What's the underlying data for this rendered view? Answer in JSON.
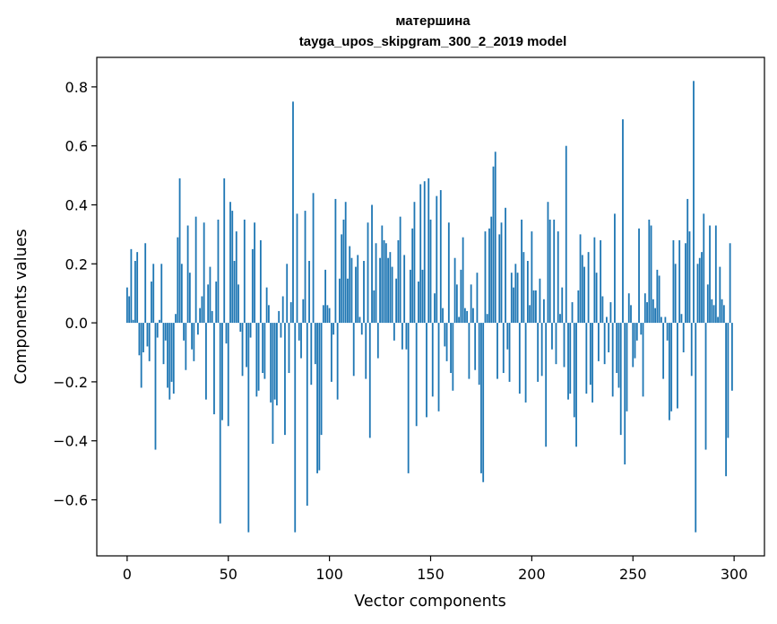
{
  "chart_data": {
    "type": "bar",
    "title": "матершина",
    "subtitle": "tayga_upos_skipgram_300_2_2019 model",
    "xlabel": "Vector components",
    "ylabel": "Components values",
    "xlim": [
      -15,
      315
    ],
    "ylim": [
      -0.79,
      0.9
    ],
    "xticks": [
      0,
      50,
      100,
      150,
      200,
      250,
      300
    ],
    "xtick_labels": [
      "0",
      "50",
      "100",
      "150",
      "200",
      "250",
      "300"
    ],
    "yticks": [
      -0.6,
      -0.4,
      -0.2,
      0.0,
      0.2,
      0.4,
      0.6,
      0.8
    ],
    "ytick_labels": [
      "−0.6",
      "−0.4",
      "−0.2",
      "0.0",
      "0.2",
      "0.4",
      "0.6",
      "0.8"
    ],
    "grid": false,
    "bar_color": "#1f77b4",
    "series": [
      {
        "name": "матершина",
        "values": [
          0.12,
          0.09,
          0.25,
          0.01,
          0.21,
          0.24,
          -0.11,
          -0.22,
          -0.1,
          0.27,
          -0.08,
          -0.13,
          0.14,
          0.2,
          -0.43,
          -0.05,
          0.01,
          0.2,
          -0.14,
          -0.06,
          -0.22,
          -0.26,
          -0.2,
          -0.24,
          0.03,
          0.29,
          0.49,
          0.2,
          -0.06,
          -0.16,
          0.33,
          0.17,
          -0.09,
          -0.13,
          0.36,
          -0.04,
          0.05,
          0.09,
          0.34,
          -0.26,
          0.13,
          0.19,
          0.04,
          -0.31,
          0.14,
          0.35,
          -0.68,
          -0.33,
          0.49,
          -0.07,
          -0.35,
          0.41,
          0.38,
          0.21,
          0.31,
          0.13,
          -0.03,
          -0.18,
          0.35,
          -0.15,
          -0.71,
          -0.05,
          0.25,
          0.34,
          -0.25,
          -0.23,
          0.28,
          -0.17,
          -0.19,
          0.12,
          0.06,
          -0.27,
          -0.41,
          -0.26,
          -0.28,
          0.04,
          -0.05,
          0.09,
          -0.38,
          0.2,
          -0.17,
          0.07,
          0.75,
          -0.71,
          0.37,
          -0.06,
          -0.12,
          0.08,
          0.38,
          -0.62,
          0.21,
          -0.21,
          0.44,
          -0.14,
          -0.51,
          -0.5,
          -0.38,
          0.06,
          0.18,
          0.06,
          0.05,
          -0.2,
          -0.04,
          0.42,
          -0.26,
          0.15,
          0.3,
          0.35,
          0.41,
          0.15,
          0.26,
          0.22,
          -0.18,
          0.19,
          0.23,
          0.02,
          -0.04,
          0.21,
          -0.19,
          0.34,
          -0.39,
          0.4,
          0.11,
          0.27,
          -0.12,
          0.22,
          0.33,
          0.28,
          0.27,
          0.22,
          0.24,
          0.19,
          -0.06,
          0.15,
          0.28,
          0.36,
          -0.09,
          0.23,
          -0.09,
          -0.51,
          0.18,
          0.32,
          0.41,
          -0.35,
          0.14,
          0.47,
          0.18,
          0.48,
          -0.32,
          0.49,
          0.35,
          -0.25,
          0.1,
          0.43,
          -0.3,
          0.45,
          0.05,
          -0.08,
          -0.13,
          0.34,
          -0.17,
          -0.23,
          0.22,
          0.13,
          0.02,
          0.18,
          0.29,
          0.05,
          0.04,
          -0.19,
          0.13,
          0.05,
          -0.16,
          0.17,
          -0.21,
          -0.51,
          -0.54,
          0.31,
          0.03,
          0.32,
          0.36,
          0.53,
          0.58,
          -0.19,
          0.3,
          0.34,
          -0.17,
          0.39,
          -0.09,
          -0.2,
          0.17,
          0.12,
          0.2,
          0.17,
          -0.24,
          0.35,
          0.24,
          -0.27,
          0.21,
          0.06,
          0.31,
          0.11,
          0.11,
          -0.2,
          0.15,
          -0.18,
          0.08,
          -0.42,
          0.41,
          0.35,
          -0.09,
          0.35,
          -0.14,
          0.31,
          0.03,
          0.12,
          -0.15,
          0.6,
          -0.26,
          -0.24,
          0.07,
          -0.32,
          -0.42,
          0.11,
          0.3,
          0.23,
          0.19,
          -0.24,
          0.24,
          -0.21,
          -0.27,
          0.29,
          0.17,
          -0.13,
          0.28,
          0.09,
          -0.14,
          0.02,
          -0.1,
          0.07,
          -0.25,
          0.37,
          -0.17,
          -0.22,
          -0.38,
          0.69,
          -0.48,
          -0.3,
          0.1,
          0.06,
          -0.15,
          -0.12,
          -0.06,
          0.32,
          -0.04,
          -0.25,
          0.1,
          0.07,
          0.35,
          0.33,
          0.08,
          0.05,
          0.18,
          0.16,
          0.02,
          -0.19,
          0.02,
          -0.06,
          -0.33,
          -0.3,
          0.28,
          0.2,
          -0.29,
          0.28,
          0.03,
          -0.1,
          0.27,
          0.42,
          0.31,
          -0.18,
          0.82,
          -0.71,
          0.2,
          0.22,
          0.24,
          0.37,
          -0.43,
          0.13,
          0.33,
          0.08,
          0.06,
          0.33,
          0.02,
          0.19,
          0.08,
          0.06,
          -0.52,
          -0.39,
          0.27,
          -0.23
        ]
      }
    ]
  }
}
